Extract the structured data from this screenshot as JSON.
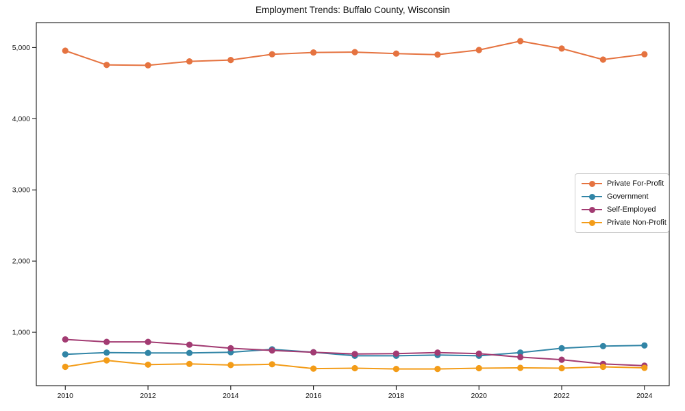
{
  "title": "Employment Trends: Buffalo County, Wisconsin",
  "chart_data": {
    "type": "line",
    "title": "Employment Trends: Buffalo County, Wisconsin",
    "xlabel": "",
    "ylabel": "",
    "grid": false,
    "background": "#ffffff",
    "axes_box_color": "#000000",
    "legend_position": "center right",
    "legend_border_color": "#cccccc",
    "x": [
      2010,
      2011,
      2012,
      2013,
      2014,
      2015,
      2016,
      2017,
      2018,
      2019,
      2020,
      2021,
      2022,
      2023,
      2024
    ],
    "x_tick_labels": [
      "2010",
      "2012",
      "2014",
      "2016",
      "2018",
      "2020",
      "2022",
      "2024"
    ],
    "x_ticks": [
      2010,
      2012,
      2014,
      2016,
      2018,
      2020,
      2022,
      2024
    ],
    "xlim": [
      2009.3,
      2024.6
    ],
    "y_ticks": [
      1000,
      2000,
      3000,
      4000,
      5000
    ],
    "y_tick_labels": [
      "1,000",
      "2,000",
      "3,000",
      "4,000",
      "5,000"
    ],
    "ylim": [
      250,
      5350
    ],
    "series": [
      {
        "name": "Private For-Profit",
        "color": "#E57340",
        "values": [
          4955,
          4755,
          4750,
          4805,
          4825,
          4905,
          4930,
          4935,
          4915,
          4900,
          4965,
          5090,
          4985,
          4830,
          4905
        ]
      },
      {
        "name": "Government",
        "color": "#3185A6",
        "values": [
          690,
          715,
          710,
          710,
          720,
          760,
          720,
          670,
          670,
          680,
          670,
          715,
          775,
          805,
          815
        ]
      },
      {
        "name": "Self-Employed",
        "color": "#A23B72",
        "values": [
          900,
          865,
          865,
          825,
          775,
          745,
          720,
          695,
          700,
          715,
          700,
          650,
          615,
          555,
          530
        ]
      },
      {
        "name": "Private Non-Profit",
        "color": "#F39C18",
        "values": [
          515,
          605,
          545,
          555,
          540,
          550,
          490,
          495,
          485,
          485,
          495,
          500,
          495,
          515,
          500
        ]
      }
    ]
  }
}
